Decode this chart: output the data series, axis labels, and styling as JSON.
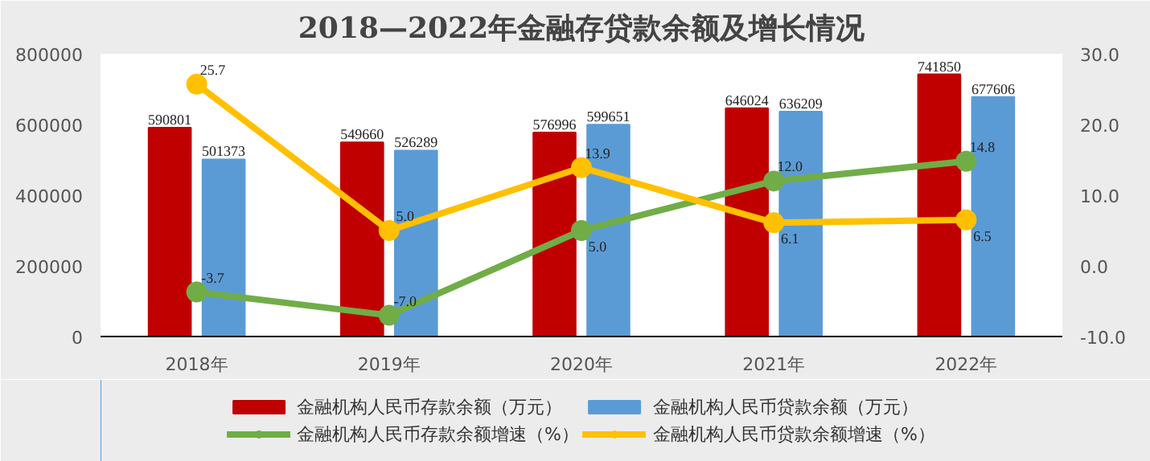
{
  "chart_data": {
    "type": "bar",
    "title": "2018—2022年金融存贷款余额及增长情况",
    "categories": [
      "2018年",
      "2019年",
      "2020年",
      "2021年",
      "2022年"
    ],
    "series": [
      {
        "name": "金融机构人民币存款余额（万元）",
        "color": "#c00000",
        "values": [
          590801,
          549660,
          576996,
          646024,
          741850
        ],
        "value_labels": [
          "590801",
          "549660",
          "576996",
          "646024",
          "741850"
        ]
      },
      {
        "name": "金融机构人民币贷款余额（万元）",
        "color": "#5b9bd5",
        "values": [
          501373,
          526289,
          599651,
          636209,
          677606
        ],
        "value_labels": [
          "501373",
          "526289",
          "599651",
          "636209",
          "677606"
        ]
      },
      {
        "name": "金融机构人民币存款余额增速（%）",
        "type": "line",
        "axis": "y2",
        "color": "#70ad47",
        "values": [
          -3.7,
          -7.0,
          5.0,
          12.0,
          14.8
        ],
        "value_labels": [
          "-3.7",
          "-7.0",
          "5.0",
          "12.0",
          "14.8"
        ]
      },
      {
        "name": "金融机构人民币贷款余额增速（%）",
        "type": "line",
        "axis": "y2",
        "color": "#ffc000",
        "values": [
          25.7,
          5.0,
          13.9,
          6.1,
          6.5
        ],
        "value_labels": [
          "25.7",
          "5.0",
          "13.9",
          "6.1",
          "6.5"
        ]
      }
    ],
    "ylim": [
      0,
      800000
    ],
    "yticks": [
      0,
      200000,
      400000,
      600000,
      800000
    ],
    "y2lim": [
      -10,
      30
    ],
    "y2ticks": [
      {
        "value": -10,
        "label": "-10.0"
      },
      {
        "value": 0,
        "label": "0.0"
      },
      {
        "value": 10,
        "label": "10.0"
      },
      {
        "value": 20,
        "label": "20.0"
      },
      {
        "value": 30,
        "label": "30.0"
      }
    ],
    "grid": false,
    "legend": "bottom",
    "marker": "circle",
    "data_labels": true
  }
}
